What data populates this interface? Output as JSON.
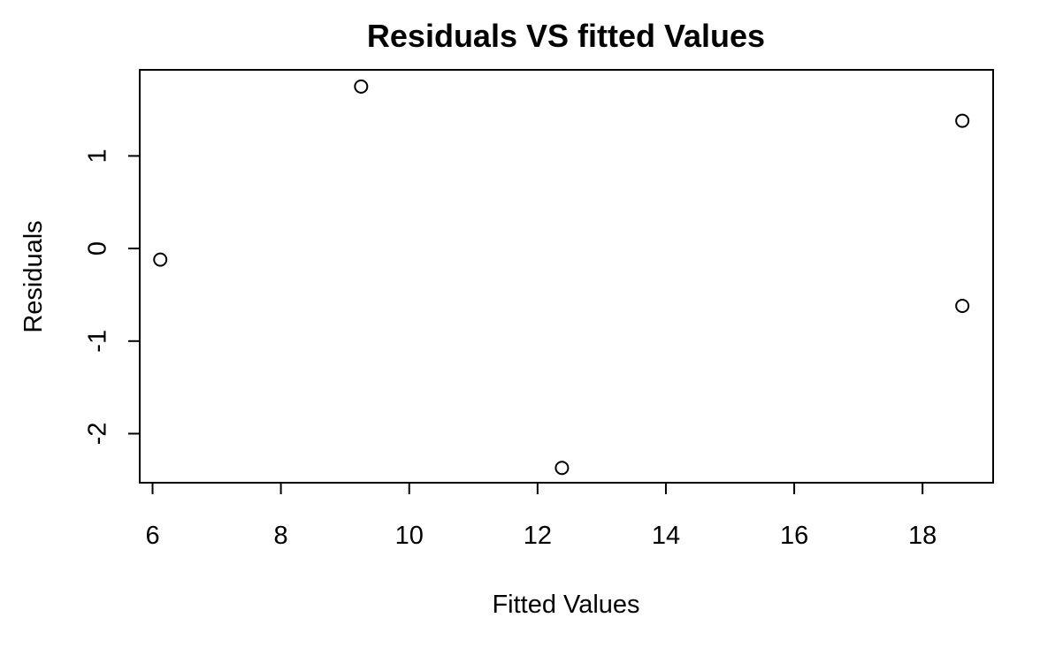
{
  "chart_data": {
    "type": "scatter",
    "title": "Residuals VS fitted Values",
    "xlabel": "Fitted Values",
    "ylabel": "Residuals",
    "xlim": [
      5.8,
      19.1
    ],
    "ylim": [
      -2.53,
      1.93
    ],
    "x_ticks": [
      6,
      8,
      10,
      12,
      14,
      16,
      18
    ],
    "y_ticks": [
      -2,
      -1,
      0,
      1
    ],
    "x_tick_labels": [
      "6",
      "8",
      "10",
      "12",
      "14",
      "16",
      "18"
    ],
    "y_tick_labels": [
      "-2",
      "-1",
      "0",
      "1"
    ],
    "grid": false,
    "legend": "none",
    "marker": "open-circle",
    "points": [
      {
        "x": 6.12,
        "y": -0.12
      },
      {
        "x": 9.25,
        "y": 1.75
      },
      {
        "x": 12.38,
        "y": -2.37
      },
      {
        "x": 18.62,
        "y": 1.38
      },
      {
        "x": 18.62,
        "y": -0.62
      }
    ]
  }
}
